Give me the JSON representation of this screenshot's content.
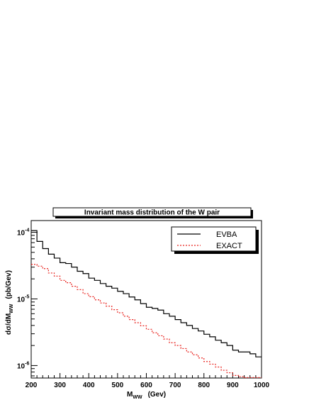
{
  "chart_data": {
    "type": "line",
    "title": "Invariant mass distribution of the W pair",
    "xlabel": "M",
    "xlabel_sub": "WW",
    "xlabel_unit": "(Gev)",
    "ylabel": "dσ/dM",
    "ylabel_sub": "WW",
    "ylabel_unit": "(pb/Gev)",
    "xlim": [
      200,
      1000
    ],
    "ylim": [
      6.5e-07,
      0.00015
    ],
    "yscale": "log",
    "grid": false,
    "legend_position": "top-right",
    "x_ticks": [
      "200",
      "300",
      "400",
      "500",
      "600",
      "700",
      "800",
      "900",
      "1000"
    ],
    "y_ticks": [
      {
        "base": "10",
        "exp": "-4",
        "value": 0.0001
      },
      {
        "base": "10",
        "exp": "-5",
        "value": 1e-05
      },
      {
        "base": "10",
        "exp": "-6",
        "value": 1e-06
      }
    ],
    "bin_edges": [
      200,
      220,
      240,
      260,
      280,
      300,
      320,
      340,
      360,
      380,
      400,
      420,
      440,
      460,
      480,
      500,
      520,
      540,
      560,
      580,
      600,
      620,
      640,
      660,
      680,
      700,
      720,
      740,
      760,
      780,
      800,
      820,
      840,
      860,
      880,
      900,
      920,
      940,
      960,
      980,
      1000
    ],
    "series": [
      {
        "name": "EVBA",
        "color": "#000000",
        "style": "solid",
        "values": [
          0.000106,
          7.3e-05,
          5.7e-05,
          4.7e-05,
          4.1e-05,
          3.5e-05,
          3.4e-05,
          3e-05,
          2.6e-05,
          2.4e-05,
          2.05e-05,
          1.9e-05,
          1.7e-05,
          1.55e-05,
          1.45e-05,
          1.3e-05,
          1.2e-05,
          1.07e-05,
          9.7e-06,
          8.5e-06,
          7.5e-06,
          7.2e-06,
          6.8e-06,
          6e-06,
          5.5e-06,
          4.9e-06,
          4.4e-06,
          4e-06,
          3.6e-06,
          3.3e-06,
          2.95e-06,
          2.7e-06,
          2.4e-06,
          2.2e-06,
          2e-06,
          1.7e-06,
          1.6e-06,
          1.6e-06,
          1.5e-06,
          1.35e-06
        ]
      },
      {
        "name": "EXACT",
        "color": "#e8211c",
        "style": "dashed",
        "values": [
          3.3e-05,
          3.1e-05,
          2.85e-05,
          2.45e-05,
          2.2e-05,
          1.9e-05,
          1.75e-05,
          1.55e-05,
          1.38e-05,
          1.2e-05,
          1.08e-05,
          9.7e-06,
          8.7e-06,
          7.8e-06,
          6.9e-06,
          6.2e-06,
          5.5e-06,
          4.9e-06,
          4.4e-06,
          3.95e-06,
          3.5e-06,
          3.1e-06,
          2.8e-06,
          2.5e-06,
          2.2e-06,
          2e-06,
          1.8e-06,
          1.6e-06,
          1.45e-06,
          1.3e-06,
          1.15e-06,
          1.05e-06,
          9.5e-07,
          8.5e-07,
          7.8e-07,
          7.1e-07,
          6.8e-07,
          6.6e-07,
          6.6e-07,
          6.6e-07
        ]
      }
    ]
  }
}
